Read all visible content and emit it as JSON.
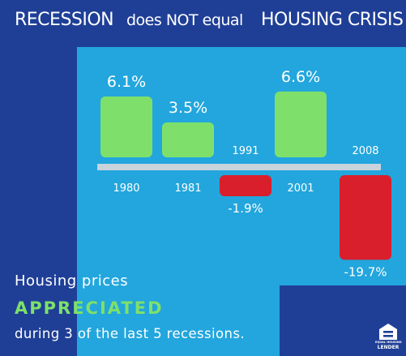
{
  "header": {
    "part1": "RECESSION",
    "part2": "does NOT equal",
    "part3": "HOUSING CRISIS"
  },
  "footer": {
    "line1": "Housing prices",
    "line2": "APPRECIATED",
    "line3": "during 3 of the last 5 recessions."
  },
  "logo": {
    "line1": "EQUAL HOUSING",
    "line2": "LENDER",
    "icon": "equal-housing-lender-icon"
  },
  "colors": {
    "background": "#1f3f97",
    "panel": "#22a6dd",
    "positive": "#7ee06a",
    "negative": "#d91f2b",
    "baseline": "#c8d3dc"
  },
  "chart_data": {
    "type": "bar",
    "categories": [
      "1980",
      "1981",
      "1991",
      "2001",
      "2008"
    ],
    "values": [
      6.1,
      3.5,
      -1.9,
      6.6,
      -19.7
    ],
    "value_labels": [
      "6.1%",
      "3.5%",
      "-1.9%",
      "6.6%",
      "-19.7%"
    ],
    "title": "",
    "xlabel": "",
    "ylabel": "",
    "grid": false,
    "legend": "none"
  }
}
